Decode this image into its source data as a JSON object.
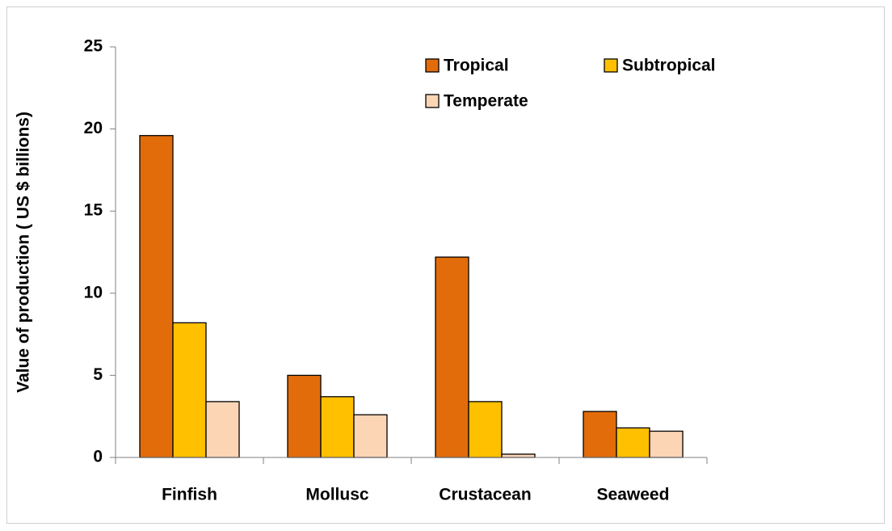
{
  "chart_data": {
    "type": "bar",
    "y_label": "Value of production ( US $ billions)",
    "categories": [
      "Finfish",
      "Mollusc",
      "Crustacean",
      "Seaweed"
    ],
    "series": [
      {
        "name": "Tropical",
        "color": "#e36c0a",
        "values": [
          19.6,
          5.0,
          12.2,
          2.8
        ]
      },
      {
        "name": "Subtropical",
        "color": "#ffc000",
        "values": [
          8.2,
          3.7,
          3.4,
          1.8
        ]
      },
      {
        "name": "Temperate",
        "color": "#fcd5b5",
        "values": [
          3.4,
          2.6,
          0.2,
          1.6
        ]
      }
    ],
    "ylim": [
      0,
      25
    ],
    "yticks": [
      0,
      5,
      10,
      15,
      20,
      25
    ],
    "grid": false,
    "legend": "top"
  }
}
